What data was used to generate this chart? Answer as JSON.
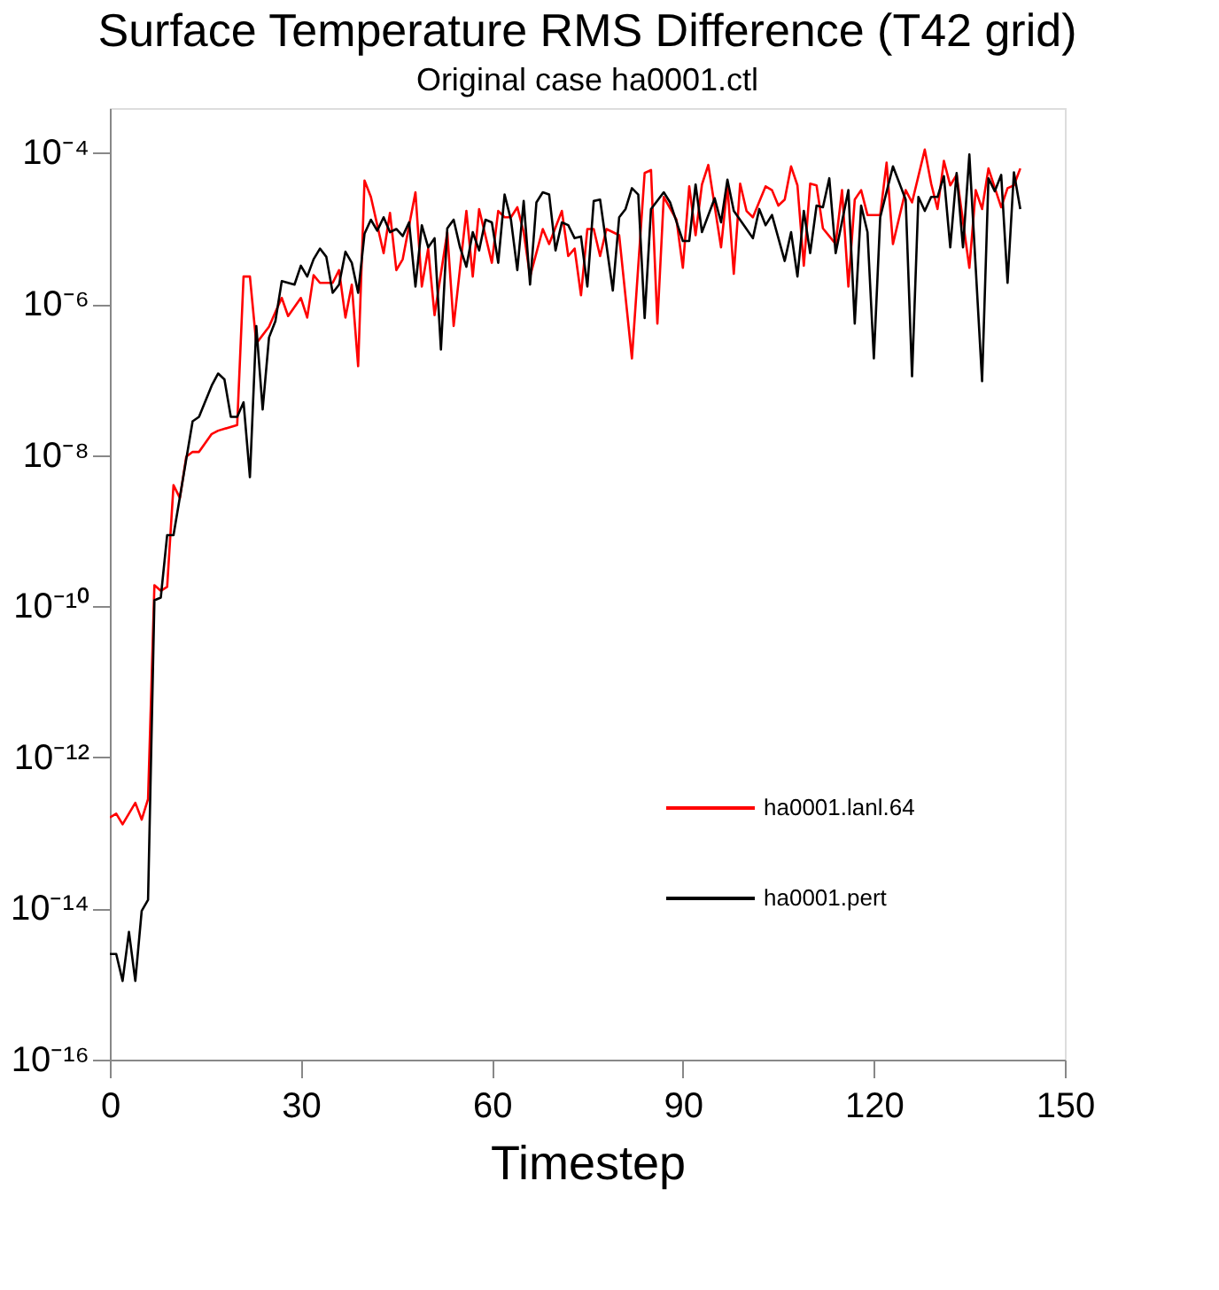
{
  "chart_data": {
    "type": "line",
    "title": "Surface Temperature RMS Difference (T42 grid)",
    "subtitle": "Original case ha0001.ctl",
    "xlabel": "Timestep",
    "log": "y",
    "grid": false,
    "legend": "bottom right",
    "line_style": "solid",
    "marker": "none",
    "xlim": [
      0,
      150
    ],
    "xticks": [
      0,
      30,
      60,
      90,
      120,
      150
    ],
    "ylim": [
      1e-16,
      0.00039
    ],
    "yticks": [
      {
        "value": 1e-16,
        "label": "10⁻¹⁶"
      },
      {
        "value": 1e-14,
        "label": "10⁻¹⁴"
      },
      {
        "value": 1e-12,
        "label": "10⁻¹²"
      },
      {
        "value": 1e-10,
        "label": "10⁻¹⁰"
      },
      {
        "value": 1e-08,
        "label": "10⁻⁸"
      },
      {
        "value": 1e-06,
        "label": "10⁻⁶"
      },
      {
        "value": 0.0001,
        "label": "10⁻⁴"
      }
    ],
    "series": [
      {
        "name": "ha0001.lanl.64",
        "color": "#ff0000",
        "x": [
          0,
          1,
          2,
          4,
          5,
          6,
          7,
          8,
          9,
          10,
          11,
          12,
          13,
          14,
          16,
          17,
          20,
          21,
          22,
          23,
          25,
          26,
          27,
          28,
          30,
          31,
          32,
          33,
          35,
          36,
          37,
          38,
          39,
          40,
          41,
          43,
          44,
          45,
          46,
          48,
          49,
          50,
          51,
          53,
          54,
          56,
          57,
          58,
          60,
          61,
          62,
          63,
          64,
          65,
          66,
          68,
          69,
          71,
          72,
          73,
          74,
          75,
          76,
          77,
          78,
          80,
          82,
          84,
          85,
          86,
          87,
          89,
          90,
          91,
          92,
          93,
          94,
          96,
          97,
          98,
          99,
          100,
          101,
          103,
          104,
          105,
          106,
          107,
          108,
          109,
          110,
          111,
          112,
          114,
          115,
          116,
          117,
          118,
          119,
          121,
          122,
          123,
          125,
          126,
          128,
          129,
          130,
          131,
          132,
          133,
          135,
          136,
          137,
          138,
          140,
          141,
          142,
          143
        ],
        "values": [
          1.6e-13,
          1.8e-13,
          1.3e-13,
          2.5e-13,
          1.5e-13,
          2.8e-13,
          1.9e-10,
          1.6e-10,
          1.8e-10,
          4e-09,
          2.7e-09,
          9.5e-09,
          1.1e-08,
          1.1e-08,
          1.9e-08,
          2.1e-08,
          2.5e-08,
          2.3e-06,
          2.3e-06,
          3e-07,
          5e-07,
          7.8e-07,
          1.2e-06,
          6.9e-07,
          1.2e-06,
          6.6e-07,
          2.4e-06,
          1.9e-06,
          1.9e-06,
          2.8e-06,
          6.6e-07,
          1.8e-06,
          1.5e-07,
          4.3e-05,
          2.6e-05,
          4.7e-06,
          1.6e-05,
          2.8e-06,
          3.9e-06,
          3e-05,
          1.7e-06,
          5.4e-06,
          7.1e-07,
          8.9e-06,
          5.1e-07,
          1.7e-05,
          2.3e-06,
          1.8e-05,
          3.5e-06,
          1.7e-05,
          1.4e-05,
          1.4e-05,
          1.9e-05,
          8.9e-06,
          2.3e-06,
          9.8e-06,
          6.2e-06,
          1.7e-05,
          4.3e-06,
          5.4e-06,
          1.3e-06,
          9.8e-06,
          9.8e-06,
          4.3e-06,
          9.8e-06,
          8.1e-06,
          1.9e-07,
          5.4e-05,
          5.9e-05,
          5.5e-07,
          2.6e-05,
          1.3e-05,
          3e-06,
          3.6e-05,
          8.1e-06,
          3.8e-05,
          6.9e-05,
          5.6e-06,
          3.7e-05,
          2.5e-06,
          3.9e-05,
          1.7e-05,
          1.4e-05,
          3.6e-05,
          3.2e-05,
          2e-05,
          2.4e-05,
          6.6e-05,
          3.7e-05,
          3.2e-06,
          3.9e-05,
          3.7e-05,
          1e-05,
          6.2e-06,
          3.2e-05,
          1.7e-06,
          2.4e-05,
          3.2e-05,
          1.5e-05,
          1.5e-05,
          7.4e-05,
          6.2e-06,
          3.2e-05,
          2.2e-05,
          0.00011,
          3.9e-05,
          1.8e-05,
          7.8e-05,
          3.7e-05,
          5.1e-05,
          3e-06,
          3.2e-05,
          1.8e-05,
          6.2e-05,
          1.9e-05,
          3.4e-05,
          3.7e-05,
          6.2e-05
        ]
      },
      {
        "name": "ha0001.pert",
        "color": "#000000",
        "x": [
          0,
          1,
          2,
          3,
          4,
          5,
          6,
          7,
          8,
          9,
          10,
          13,
          14,
          16,
          17,
          18,
          19,
          20,
          21,
          22,
          23,
          24,
          25,
          26,
          27,
          29,
          30,
          31,
          32,
          33,
          34,
          35,
          36,
          37,
          38,
          39,
          40,
          41,
          42,
          43,
          44,
          45,
          46,
          47,
          48,
          49,
          50,
          51,
          52,
          53,
          54,
          55,
          56,
          57,
          58,
          59,
          60,
          61,
          62,
          63,
          64,
          65,
          66,
          67,
          68,
          69,
          70,
          71,
          72,
          73,
          74,
          75,
          76,
          77,
          79,
          80,
          81,
          82,
          83,
          84,
          85,
          87,
          88,
          90,
          91,
          92,
          93,
          95,
          96,
          97,
          98,
          100,
          101,
          102,
          103,
          104,
          106,
          107,
          108,
          109,
          110,
          111,
          112,
          113,
          114,
          116,
          117,
          118,
          119,
          120,
          121,
          123,
          125,
          126,
          127,
          128,
          129,
          130,
          131,
          132,
          133,
          134,
          135,
          137,
          138,
          139,
          140,
          141,
          142,
          143
        ],
        "values": [
          2.5e-15,
          2.5e-15,
          1.1e-15,
          4.9e-15,
          1.1e-15,
          9.3e-15,
          1.3e-14,
          1.2e-10,
          1.3e-10,
          8.7e-10,
          8.7e-10,
          2.8e-08,
          3.2e-08,
          8.3e-08,
          1.2e-07,
          1e-07,
          3.2e-08,
          3.2e-08,
          5e-08,
          5.1e-09,
          5.1e-07,
          4e-08,
          3.6e-07,
          5.9e-07,
          2e-06,
          1.8e-06,
          3.2e-06,
          2.3e-06,
          3.9e-06,
          5.4e-06,
          4.2e-06,
          1.4e-06,
          1.8e-06,
          4.9e-06,
          3.5e-06,
          1.4e-06,
          8.5e-06,
          1.3e-05,
          9.3e-06,
          1.4e-05,
          8.9e-06,
          9.8e-06,
          7.9e-06,
          1.2e-05,
          1.7e-06,
          1.1e-05,
          5.6e-06,
          7.4e-06,
          2.5e-07,
          1e-05,
          1.3e-05,
          5.6e-06,
          3.1e-06,
          8.9e-06,
          5.1e-06,
          1.3e-05,
          1.2e-05,
          3.5e-06,
          2.8e-05,
          1.3e-05,
          2.8e-06,
          2.3e-05,
          1.8e-06,
          2.2e-05,
          3e-05,
          2.8e-05,
          5.1e-06,
          1.2e-05,
          1.1e-05,
          7.4e-06,
          7.8e-06,
          1.7e-06,
          2.3e-05,
          2.4e-05,
          1.5e-06,
          1.4e-05,
          1.8e-05,
          3.4e-05,
          2.8e-05,
          6.5e-07,
          1.8e-05,
          3e-05,
          2.2e-05,
          6.8e-06,
          6.8e-06,
          3.8e-05,
          8.9e-06,
          2.5e-05,
          1.2e-05,
          4.4e-05,
          1.7e-05,
          9.8e-06,
          7.4e-06,
          1.8e-05,
          1.1e-05,
          1.5e-05,
          3.7e-06,
          8.9e-06,
          2.3e-06,
          1.7e-05,
          4.7e-06,
          2e-05,
          1.9e-05,
          4.6e-05,
          4.7e-06,
          3.2e-05,
          5.5e-07,
          2e-05,
          8.9e-06,
          1.9e-07,
          1.4e-05,
          6.6e-05,
          2.4e-05,
          1.1e-07,
          2.6e-05,
          1.7e-05,
          2.6e-05,
          2.6e-05,
          4.9e-05,
          5.6e-06,
          5.4e-05,
          5.6e-06,
          9.5e-05,
          9.5e-08,
          4.6e-05,
          3.1e-05,
          5.1e-05,
          1.9e-06,
          5.5e-05,
          1.8e-05
        ]
      }
    ]
  }
}
